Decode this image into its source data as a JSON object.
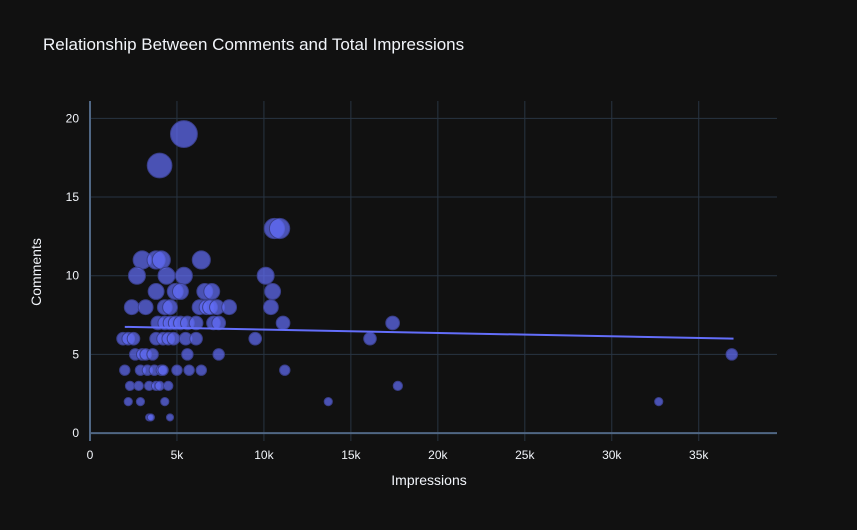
{
  "chart_data": {
    "type": "scatter",
    "title": "Relationship Between Comments and Total Impressions",
    "xlabel": "Impressions",
    "ylabel": "Comments",
    "xlim": [
      0,
      39500
    ],
    "ylim": [
      -0.5,
      21.1
    ],
    "x_ticks": [
      0,
      5000,
      10000,
      15000,
      20000,
      25000,
      30000,
      35000
    ],
    "x_tick_labels": [
      "0",
      "5k",
      "10k",
      "15k",
      "20k",
      "25k",
      "30k",
      "35k"
    ],
    "y_ticks": [
      0,
      5,
      10,
      15,
      20
    ],
    "y_tick_labels": [
      "0",
      "5",
      "10",
      "15",
      "20"
    ],
    "grid": true,
    "marker_color": "#636efa",
    "trendline": {
      "type": "ols",
      "x": [
        2000,
        37000
      ],
      "y": [
        6.75,
        6.0
      ],
      "color": "#636efa"
    },
    "points": [
      {
        "x": 5400,
        "y": 19
      },
      {
        "x": 4000,
        "y": 17
      },
      {
        "x": 10600,
        "y": 13
      },
      {
        "x": 10900,
        "y": 13
      },
      {
        "x": 3000,
        "y": 11
      },
      {
        "x": 3800,
        "y": 11
      },
      {
        "x": 4100,
        "y": 11
      },
      {
        "x": 6400,
        "y": 11
      },
      {
        "x": 2700,
        "y": 10
      },
      {
        "x": 4400,
        "y": 10
      },
      {
        "x": 5400,
        "y": 10
      },
      {
        "x": 10100,
        "y": 10
      },
      {
        "x": 3800,
        "y": 9
      },
      {
        "x": 4900,
        "y": 9
      },
      {
        "x": 5200,
        "y": 9
      },
      {
        "x": 6600,
        "y": 9
      },
      {
        "x": 7000,
        "y": 9
      },
      {
        "x": 10500,
        "y": 9
      },
      {
        "x": 2400,
        "y": 8
      },
      {
        "x": 3200,
        "y": 8
      },
      {
        "x": 4300,
        "y": 8
      },
      {
        "x": 4600,
        "y": 8
      },
      {
        "x": 6300,
        "y": 8
      },
      {
        "x": 6700,
        "y": 8
      },
      {
        "x": 6900,
        "y": 8
      },
      {
        "x": 7300,
        "y": 8
      },
      {
        "x": 8000,
        "y": 8
      },
      {
        "x": 10400,
        "y": 8
      },
      {
        "x": 3900,
        "y": 7
      },
      {
        "x": 4300,
        "y": 7
      },
      {
        "x": 4600,
        "y": 7
      },
      {
        "x": 4900,
        "y": 7
      },
      {
        "x": 5200,
        "y": 7
      },
      {
        "x": 5600,
        "y": 7
      },
      {
        "x": 6100,
        "y": 7
      },
      {
        "x": 7100,
        "y": 7
      },
      {
        "x": 7400,
        "y": 7
      },
      {
        "x": 11100,
        "y": 7
      },
      {
        "x": 17400,
        "y": 7
      },
      {
        "x": 1900,
        "y": 6
      },
      {
        "x": 2200,
        "y": 6
      },
      {
        "x": 2500,
        "y": 6
      },
      {
        "x": 3800,
        "y": 6
      },
      {
        "x": 4200,
        "y": 6
      },
      {
        "x": 4500,
        "y": 6
      },
      {
        "x": 4800,
        "y": 6
      },
      {
        "x": 5500,
        "y": 6
      },
      {
        "x": 6100,
        "y": 6
      },
      {
        "x": 9500,
        "y": 6
      },
      {
        "x": 16100,
        "y": 6
      },
      {
        "x": 2600,
        "y": 5
      },
      {
        "x": 3000,
        "y": 5
      },
      {
        "x": 3200,
        "y": 5
      },
      {
        "x": 3600,
        "y": 5
      },
      {
        "x": 5600,
        "y": 5
      },
      {
        "x": 7400,
        "y": 5
      },
      {
        "x": 36900,
        "y": 5
      },
      {
        "x": 2000,
        "y": 4
      },
      {
        "x": 2900,
        "y": 4
      },
      {
        "x": 3300,
        "y": 4
      },
      {
        "x": 3700,
        "y": 4
      },
      {
        "x": 4100,
        "y": 4
      },
      {
        "x": 4200,
        "y": 4
      },
      {
        "x": 5000,
        "y": 4
      },
      {
        "x": 5700,
        "y": 4
      },
      {
        "x": 6400,
        "y": 4
      },
      {
        "x": 11200,
        "y": 4
      },
      {
        "x": 2300,
        "y": 3
      },
      {
        "x": 2800,
        "y": 3
      },
      {
        "x": 3400,
        "y": 3
      },
      {
        "x": 3800,
        "y": 3
      },
      {
        "x": 4000,
        "y": 3
      },
      {
        "x": 4500,
        "y": 3
      },
      {
        "x": 17700,
        "y": 3
      },
      {
        "x": 2200,
        "y": 2
      },
      {
        "x": 2900,
        "y": 2
      },
      {
        "x": 4300,
        "y": 2
      },
      {
        "x": 13700,
        "y": 2
      },
      {
        "x": 32700,
        "y": 2
      },
      {
        "x": 3400,
        "y": 1
      },
      {
        "x": 3500,
        "y": 1
      },
      {
        "x": 4600,
        "y": 1
      }
    ]
  }
}
